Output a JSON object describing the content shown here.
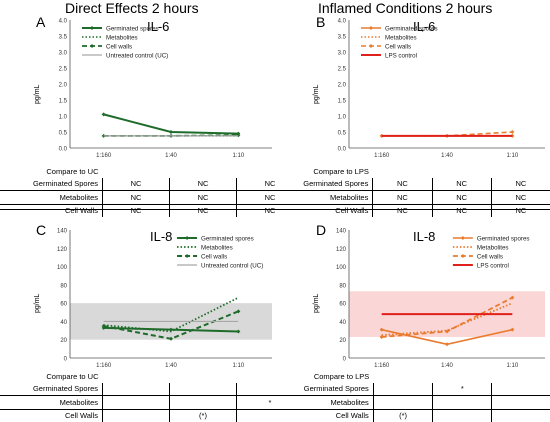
{
  "sections": {
    "left_title": "Direct Effects 2 hours",
    "right_title": "Inflamed Conditions 2 hours"
  },
  "chart_data": [
    {
      "panel": "A",
      "type": "line",
      "title": "IL-6",
      "ylabel": "pg/mL",
      "ylim": [
        0,
        4.0
      ],
      "yticks": [
        "0.0",
        "0.5",
        "1.0",
        "1.5",
        "2.0",
        "2.5",
        "3.0",
        "3.5",
        "4.0"
      ],
      "categories": [
        "1:160",
        "1:40",
        "1:10"
      ],
      "series": [
        {
          "name": "Germinated spores",
          "values": [
            1.05,
            0.5,
            0.45
          ],
          "color": "#1e6b2a",
          "dash": "solid",
          "marker": "diamond",
          "width": 2
        },
        {
          "name": "Metabolites",
          "values": [
            0.38,
            0.38,
            0.38
          ],
          "color": "#1e6b2a",
          "dash": "dot",
          "marker": "none",
          "width": 1.6
        },
        {
          "name": "Cell walls",
          "values": [
            0.38,
            0.38,
            0.4
          ],
          "color": "#1e6b2a",
          "dash": "dash",
          "marker": "diamond",
          "width": 1.8
        },
        {
          "name": "Untreated control (UC)",
          "values": [
            0.38,
            0.38,
            0.38
          ],
          "color": "#a8a8a8",
          "dash": "solid",
          "marker": "none",
          "width": 1.2
        }
      ],
      "legend": "top-left"
    },
    {
      "panel": "B",
      "type": "line",
      "title": "IL-6",
      "ylabel": "pg/mL",
      "ylim": [
        0,
        4.0
      ],
      "yticks": [
        "0.0",
        "0.5",
        "1.0",
        "1.5",
        "2.0",
        "2.5",
        "3.0",
        "3.5",
        "4.0"
      ],
      "categories": [
        "1:160",
        "1:40",
        "1:10"
      ],
      "series": [
        {
          "name": "Germinated spores",
          "values": [
            0.38,
            0.38,
            0.38
          ],
          "color": "#e87b2e",
          "dash": "solid",
          "marker": "diamond",
          "width": 1.6
        },
        {
          "name": "Metabolites",
          "values": [
            0.38,
            0.38,
            0.38
          ],
          "color": "#e87b2e",
          "dash": "dot",
          "marker": "none",
          "width": 1.6
        },
        {
          "name": "Cell walls",
          "values": [
            0.38,
            0.38,
            0.5
          ],
          "color": "#e87b2e",
          "dash": "dash",
          "marker": "diamond",
          "width": 1.6
        },
        {
          "name": "LPS control",
          "values": [
            0.38,
            0.38,
            0.38
          ],
          "color": "#e0201b",
          "dash": "solid",
          "marker": "none",
          "width": 2
        }
      ],
      "legend": "top-left"
    },
    {
      "panel": "C",
      "type": "line",
      "title": "IL-8",
      "ylabel": "pg/mL",
      "ylim": [
        0,
        140
      ],
      "yticks": [
        "0",
        "20",
        "40",
        "60",
        "80",
        "100",
        "120",
        "140"
      ],
      "categories": [
        "1:160",
        "1:40",
        "1:10"
      ],
      "band": {
        "from": 20,
        "to": 60,
        "color": "#d9d9d9"
      },
      "series": [
        {
          "name": "Germinated spores",
          "values": [
            33,
            31,
            29
          ],
          "color": "#1e6b2a",
          "dash": "solid",
          "marker": "diamond",
          "width": 2
        },
        {
          "name": "Metabolites",
          "values": [
            36,
            29,
            66
          ],
          "color": "#1e6b2a",
          "dash": "dot",
          "marker": "none",
          "width": 1.8
        },
        {
          "name": "Cell walls",
          "values": [
            35,
            21,
            51
          ],
          "color": "#1e6b2a",
          "dash": "dash",
          "marker": "diamond",
          "width": 2
        },
        {
          "name": "Untreated control (UC)",
          "values": [
            40,
            40,
            40
          ],
          "color": "#a8a8a8",
          "dash": "solid",
          "marker": "none",
          "width": 1.2
        }
      ],
      "legend": "top-right"
    },
    {
      "panel": "D",
      "type": "line",
      "title": "IL-8",
      "ylabel": "pg/mL",
      "ylim": [
        0,
        140
      ],
      "yticks": [
        "0",
        "20",
        "40",
        "60",
        "80",
        "100",
        "120",
        "140"
      ],
      "categories": [
        "1:160",
        "1:40",
        "1:10"
      ],
      "band": {
        "from": 23,
        "to": 73,
        "color": "#fbd6d6"
      },
      "series": [
        {
          "name": "Germinated spores",
          "values": [
            31,
            15,
            31
          ],
          "color": "#e87b2e",
          "dash": "solid",
          "marker": "diamond",
          "width": 1.6
        },
        {
          "name": "Metabolites",
          "values": [
            25,
            30,
            60
          ],
          "color": "#e87b2e",
          "dash": "dot",
          "marker": "none",
          "width": 1.8
        },
        {
          "name": "Cell walls",
          "values": [
            23,
            29,
            66
          ],
          "color": "#e87b2e",
          "dash": "dash",
          "marker": "diamond",
          "width": 1.8
        },
        {
          "name": "LPS control",
          "values": [
            48,
            48,
            48
          ],
          "color": "#e0201b",
          "dash": "solid",
          "marker": "none",
          "width": 2
        }
      ],
      "legend": "top-right"
    }
  ],
  "tables": [
    {
      "header": "Compare to UC",
      "rows": [
        {
          "label": "Germinated Spores",
          "cells": [
            "NC",
            "NC",
            "NC"
          ]
        },
        {
          "label": "Metabolites",
          "cells": [
            "NC",
            "NC",
            "NC"
          ]
        },
        {
          "label": "Cell Walls",
          "cells": [
            "NC",
            "NC",
            "NC"
          ]
        }
      ]
    },
    {
      "header": "Compare to LPS",
      "rows": [
        {
          "label": "Germinated Spores",
          "cells": [
            "NC",
            "NC",
            "NC"
          ]
        },
        {
          "label": "Metabolites",
          "cells": [
            "NC",
            "NC",
            "NC"
          ]
        },
        {
          "label": "Cell Walls",
          "cells": [
            "NC",
            "NC",
            "NC"
          ]
        }
      ]
    },
    {
      "header": "Compare to UC",
      "rows": [
        {
          "label": "Germinated Spores",
          "cells": [
            "",
            "",
            ""
          ]
        },
        {
          "label": "Metabolites",
          "cells": [
            "",
            "",
            "*"
          ]
        },
        {
          "label": "Cell Walls",
          "cells": [
            "",
            "(*)",
            ""
          ]
        }
      ]
    },
    {
      "header": "Compare to LPS",
      "rows": [
        {
          "label": "Germinated Spores",
          "cells": [
            "",
            "*",
            ""
          ]
        },
        {
          "label": "Metabolites",
          "cells": [
            "",
            "",
            ""
          ]
        },
        {
          "label": "Cell Walls",
          "cells": [
            "(*)",
            "",
            ""
          ]
        }
      ]
    }
  ]
}
